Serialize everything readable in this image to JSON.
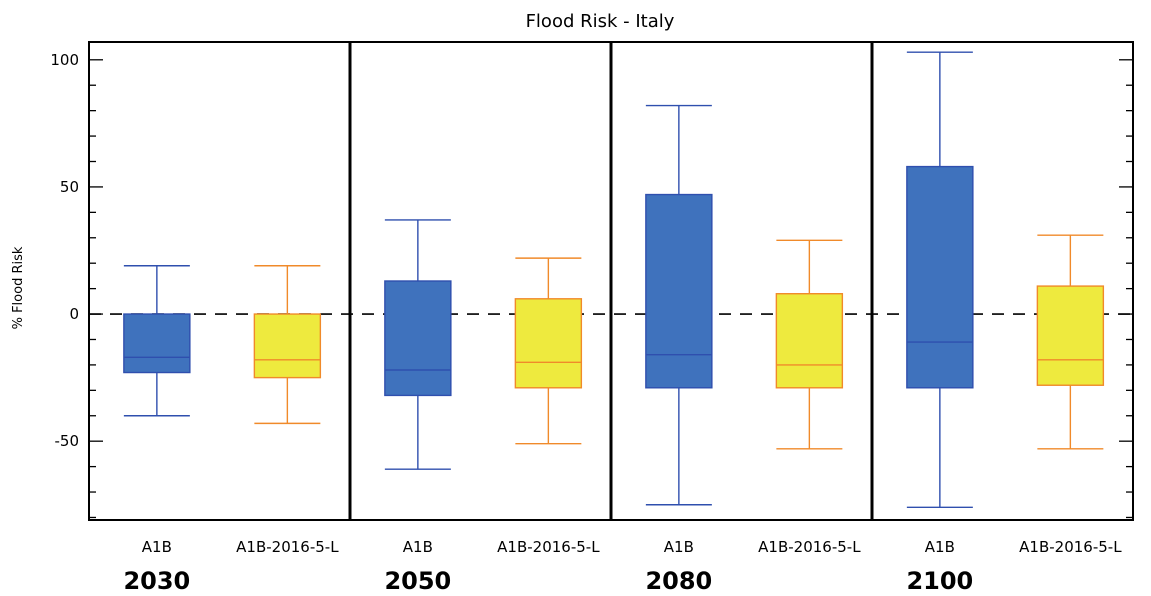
{
  "chart_data": {
    "type": "box",
    "title": "Flood Risk - Italy",
    "ylabel": "% Flood Risk",
    "xlabel": "",
    "ylim": [
      -81,
      107
    ],
    "yticks": [
      -50,
      0,
      50,
      100
    ],
    "reference_line": 0,
    "groups": [
      "2030",
      "2050",
      "2080",
      "2100"
    ],
    "categories": [
      "A1B",
      "A1B-2016-5-L"
    ],
    "series": [
      {
        "name": "A1B",
        "fill": "#3f72bd",
        "stroke": "#2f4fae",
        "boxes": [
          {
            "group": "2030",
            "whisker_low": -40,
            "q1": -23,
            "median": -17,
            "q3": 0,
            "whisker_high": 19
          },
          {
            "group": "2050",
            "whisker_low": -61,
            "q1": -32,
            "median": -22,
            "q3": 13,
            "whisker_high": 37
          },
          {
            "group": "2080",
            "whisker_low": -75,
            "q1": -29,
            "median": -16,
            "q3": 47,
            "whisker_high": 82
          },
          {
            "group": "2100",
            "whisker_low": -76,
            "q1": -29,
            "median": -11,
            "q3": 58,
            "whisker_high": 103
          }
        ]
      },
      {
        "name": "A1B-2016-5-L",
        "fill": "#eeea3e",
        "stroke": "#f08a2a",
        "boxes": [
          {
            "group": "2030",
            "whisker_low": -43,
            "q1": -25,
            "median": -18,
            "q3": 0,
            "whisker_high": 19
          },
          {
            "group": "2050",
            "whisker_low": -51,
            "q1": -29,
            "median": -19,
            "q3": 6,
            "whisker_high": 22
          },
          {
            "group": "2080",
            "whisker_low": -53,
            "q1": -29,
            "median": -20,
            "q3": 8,
            "whisker_high": 29
          },
          {
            "group": "2100",
            "whisker_low": -53,
            "q1": -28,
            "median": -18,
            "q3": 11,
            "whisker_high": 31
          }
        ]
      }
    ]
  }
}
